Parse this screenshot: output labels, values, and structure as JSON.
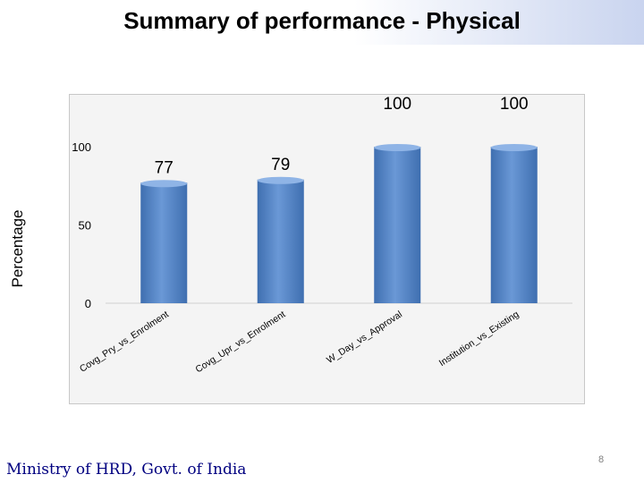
{
  "slide": {
    "title": "Summary of performance - Physical",
    "footer": "Ministry of HRD, Govt. of India",
    "page_number": "8"
  },
  "chart_data": {
    "type": "bar",
    "title": "",
    "xlabel": "",
    "ylabel": "Percentage",
    "categories": [
      "Covg_Pry_vs_Enrolment",
      "Covg_Upr_vs_Enrolment",
      "W_Day_vs_Approval",
      "Institution_vs_Existing"
    ],
    "values": [
      77,
      79,
      100,
      100
    ],
    "data_labels": [
      "77",
      "79",
      "100",
      "100"
    ],
    "ylim": [
      0,
      100
    ],
    "yticks": [
      0,
      50,
      100
    ],
    "ytick_labels": [
      "0",
      "50",
      "100"
    ],
    "grid": false,
    "legend": "none",
    "colors": {
      "bar": "#4f81bd",
      "bar_dark": "#3f6fb0",
      "plot_bg": "#f4f4f4"
    }
  }
}
